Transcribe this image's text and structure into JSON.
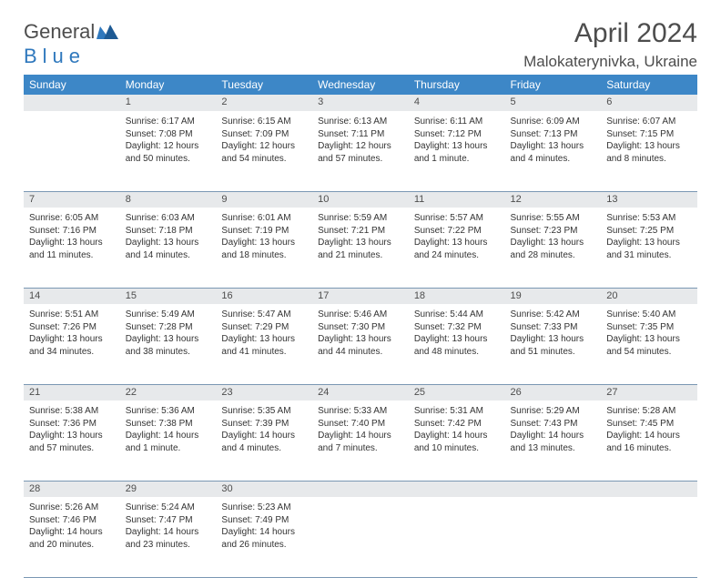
{
  "logo": {
    "partA": "General",
    "partB": "Blue"
  },
  "title": "April 2024",
  "location": "Malokaterynivka, Ukraine",
  "colors": {
    "header_bg": "#3d87c7",
    "header_text": "#ffffff",
    "daynum_bg": "#e7e9eb",
    "text": "#4d4d4d",
    "cell_text": "#333333",
    "rule": "#7a97b3",
    "logo_gray": "#4d4d4d",
    "logo_blue": "#2f78bd"
  },
  "weekdays": [
    "Sunday",
    "Monday",
    "Tuesday",
    "Wednesday",
    "Thursday",
    "Friday",
    "Saturday"
  ],
  "weeks": [
    {
      "nums": [
        "",
        "1",
        "2",
        "3",
        "4",
        "5",
        "6"
      ],
      "cells": [
        {
          "empty": true
        },
        {
          "sunrise": "6:17 AM",
          "sunset": "7:08 PM",
          "daylight": "12 hours and 50 minutes."
        },
        {
          "sunrise": "6:15 AM",
          "sunset": "7:09 PM",
          "daylight": "12 hours and 54 minutes."
        },
        {
          "sunrise": "6:13 AM",
          "sunset": "7:11 PM",
          "daylight": "12 hours and 57 minutes."
        },
        {
          "sunrise": "6:11 AM",
          "sunset": "7:12 PM",
          "daylight": "13 hours and 1 minute."
        },
        {
          "sunrise": "6:09 AM",
          "sunset": "7:13 PM",
          "daylight": "13 hours and 4 minutes."
        },
        {
          "sunrise": "6:07 AM",
          "sunset": "7:15 PM",
          "daylight": "13 hours and 8 minutes."
        }
      ]
    },
    {
      "nums": [
        "7",
        "8",
        "9",
        "10",
        "11",
        "12",
        "13"
      ],
      "cells": [
        {
          "sunrise": "6:05 AM",
          "sunset": "7:16 PM",
          "daylight": "13 hours and 11 minutes."
        },
        {
          "sunrise": "6:03 AM",
          "sunset": "7:18 PM",
          "daylight": "13 hours and 14 minutes."
        },
        {
          "sunrise": "6:01 AM",
          "sunset": "7:19 PM",
          "daylight": "13 hours and 18 minutes."
        },
        {
          "sunrise": "5:59 AM",
          "sunset": "7:21 PM",
          "daylight": "13 hours and 21 minutes."
        },
        {
          "sunrise": "5:57 AM",
          "sunset": "7:22 PM",
          "daylight": "13 hours and 24 minutes."
        },
        {
          "sunrise": "5:55 AM",
          "sunset": "7:23 PM",
          "daylight": "13 hours and 28 minutes."
        },
        {
          "sunrise": "5:53 AM",
          "sunset": "7:25 PM",
          "daylight": "13 hours and 31 minutes."
        }
      ]
    },
    {
      "nums": [
        "14",
        "15",
        "16",
        "17",
        "18",
        "19",
        "20"
      ],
      "cells": [
        {
          "sunrise": "5:51 AM",
          "sunset": "7:26 PM",
          "daylight": "13 hours and 34 minutes."
        },
        {
          "sunrise": "5:49 AM",
          "sunset": "7:28 PM",
          "daylight": "13 hours and 38 minutes."
        },
        {
          "sunrise": "5:47 AM",
          "sunset": "7:29 PM",
          "daylight": "13 hours and 41 minutes."
        },
        {
          "sunrise": "5:46 AM",
          "sunset": "7:30 PM",
          "daylight": "13 hours and 44 minutes."
        },
        {
          "sunrise": "5:44 AM",
          "sunset": "7:32 PM",
          "daylight": "13 hours and 48 minutes."
        },
        {
          "sunrise": "5:42 AM",
          "sunset": "7:33 PM",
          "daylight": "13 hours and 51 minutes."
        },
        {
          "sunrise": "5:40 AM",
          "sunset": "7:35 PM",
          "daylight": "13 hours and 54 minutes."
        }
      ]
    },
    {
      "nums": [
        "21",
        "22",
        "23",
        "24",
        "25",
        "26",
        "27"
      ],
      "cells": [
        {
          "sunrise": "5:38 AM",
          "sunset": "7:36 PM",
          "daylight": "13 hours and 57 minutes."
        },
        {
          "sunrise": "5:36 AM",
          "sunset": "7:38 PM",
          "daylight": "14 hours and 1 minute."
        },
        {
          "sunrise": "5:35 AM",
          "sunset": "7:39 PM",
          "daylight": "14 hours and 4 minutes."
        },
        {
          "sunrise": "5:33 AM",
          "sunset": "7:40 PM",
          "daylight": "14 hours and 7 minutes."
        },
        {
          "sunrise": "5:31 AM",
          "sunset": "7:42 PM",
          "daylight": "14 hours and 10 minutes."
        },
        {
          "sunrise": "5:29 AM",
          "sunset": "7:43 PM",
          "daylight": "14 hours and 13 minutes."
        },
        {
          "sunrise": "5:28 AM",
          "sunset": "7:45 PM",
          "daylight": "14 hours and 16 minutes."
        }
      ]
    },
    {
      "nums": [
        "28",
        "29",
        "30",
        "",
        "",
        "",
        ""
      ],
      "cells": [
        {
          "sunrise": "5:26 AM",
          "sunset": "7:46 PM",
          "daylight": "14 hours and 20 minutes."
        },
        {
          "sunrise": "5:24 AM",
          "sunset": "7:47 PM",
          "daylight": "14 hours and 23 minutes."
        },
        {
          "sunrise": "5:23 AM",
          "sunset": "7:49 PM",
          "daylight": "14 hours and 26 minutes."
        },
        {
          "empty": true
        },
        {
          "empty": true
        },
        {
          "empty": true
        },
        {
          "empty": true
        }
      ]
    }
  ],
  "labels": {
    "sunrise": "Sunrise: ",
    "sunset": "Sunset: ",
    "daylight": "Daylight: "
  }
}
